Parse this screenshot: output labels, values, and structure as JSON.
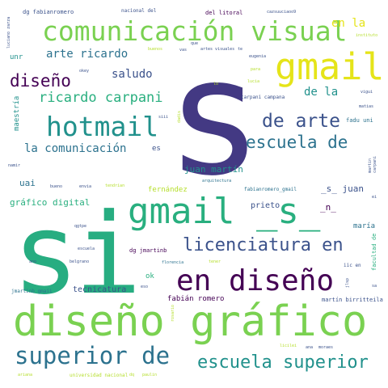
{
  "colors": {
    "background": "#ffffff",
    "dark_purple": "#440154",
    "indigo": "#433983",
    "blue": "#3b528b",
    "teal_blue": "#2c728e",
    "teal": "#21918c",
    "green_teal": "#27ad81",
    "sea_green": "#29af7f",
    "green": "#5ec962",
    "light_green": "#7ad151",
    "lime": "#b5de2b",
    "yellow": "#e5e419",
    "yellow_light": "#fde725"
  },
  "words": [
    "s",
    "si",
    "diseño gráfico",
    "gmail _s_",
    "comunicación visual",
    "gmail",
    "hotmail",
    "en diseño",
    "superior de",
    "escuela superior",
    "licenciatura en",
    "de arte",
    "escuela de",
    "diseño",
    "ricardo carpani",
    "arte ricardo",
    "saludo",
    "la comunicación",
    "en la",
    "de la",
    "juan martín",
    "gráfico digital",
    "fernández",
    "_s_ juan",
    "_n_",
    "prieto",
    "maría",
    "uai",
    "tecnicatura",
    "fabián romero",
    "martín birritteila",
    "ok",
    "dg jmartinb",
    "maestría",
    "unr",
    "es",
    "dg fabianromero",
    "nacional del",
    "del litoral",
    "carpani campana",
    "fabianromero_gmail",
    "arquitectura",
    "universidad nacional",
    "jmartinb gmaii",
    "facultad de",
    "iic en",
    "fadu uni",
    "carpani",
    "luciano zarza",
    "cazsuuciaoo9",
    "okey",
    "artes visuales",
    "eugenia",
    "para",
    "lucia",
    "vigui",
    "matias",
    "instituto",
    "siii",
    "dadis",
    "martin",
    "namir",
    "bueno",
    "envia",
    "escuela",
    "belgrano",
    "florencia",
    "tendrían",
    "moraes",
    "ana",
    "licilei",
    "dq",
    "paulin",
    "ariana",
    "rosario",
    "ei",
    "sa",
    "eso",
    "ano",
    "jlsp",
    "qgtpe",
    "buenos",
    "tener",
    "que",
    "vas",
    "lo",
    "te"
  ]
}
